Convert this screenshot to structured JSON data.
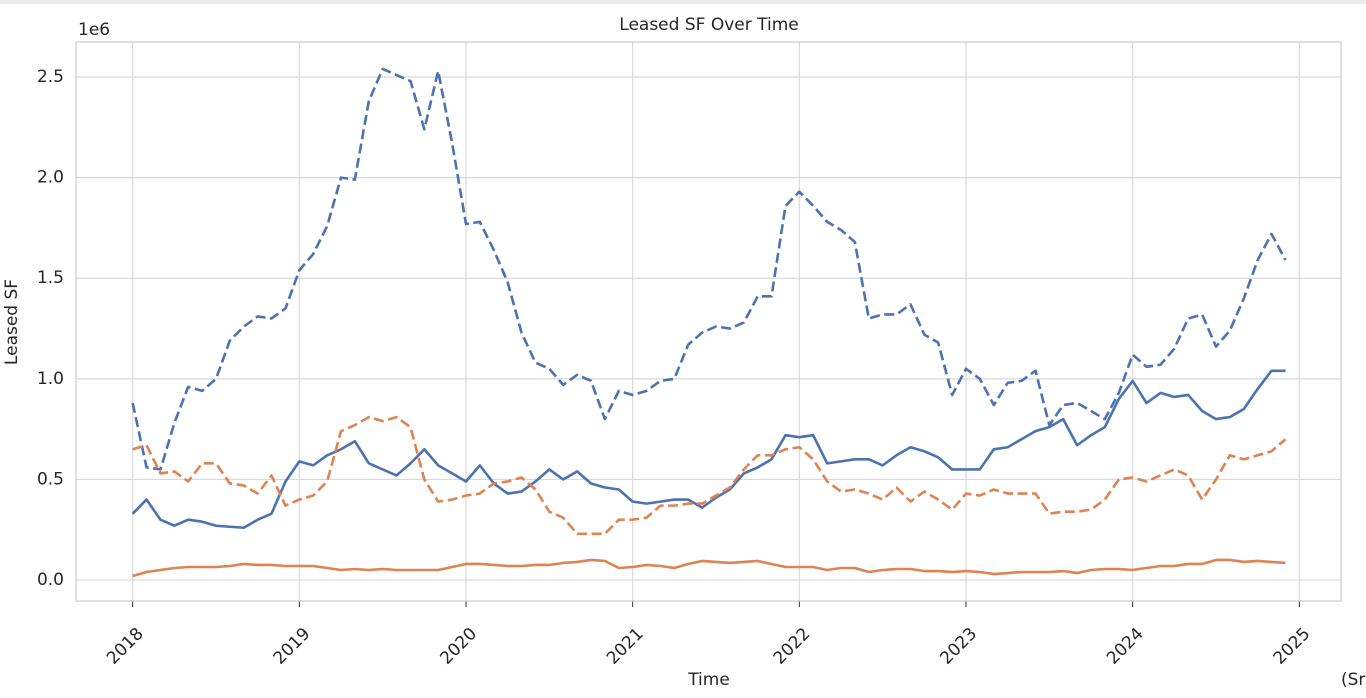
{
  "chart_data": {
    "type": "line",
    "title": "Leased SF Over Time",
    "x_label": "Time",
    "y_label": "Leased SF",
    "y_offset_label": "1e6",
    "annotation": "(Sr",
    "grid": true,
    "xlim": [
      2017.66,
      2025.25
    ],
    "xticks": [
      2018,
      2019,
      2020,
      2021,
      2022,
      2023,
      2024,
      2025
    ],
    "ylim": [
      -0.104,
      2.674
    ],
    "yticks": [
      {
        "value": 0,
        "label": "0.0"
      },
      {
        "value": 0.5,
        "label": "0.5"
      },
      {
        "value": 1,
        "label": "1.0"
      },
      {
        "value": 1.5,
        "label": "1.5"
      },
      {
        "value": 2,
        "label": "2.0"
      },
      {
        "value": 2.5,
        "label": "2.5"
      }
    ],
    "x": [
      2018,
      2018.083,
      2018.167,
      2018.25,
      2018.333,
      2018.417,
      2018.5,
      2018.583,
      2018.667,
      2018.75,
      2018.833,
      2018.917,
      2019,
      2019.083,
      2019.167,
      2019.25,
      2019.333,
      2019.417,
      2019.5,
      2019.583,
      2019.667,
      2019.75,
      2019.833,
      2019.917,
      2020,
      2020.083,
      2020.167,
      2020.25,
      2020.333,
      2020.417,
      2020.5,
      2020.583,
      2020.667,
      2020.75,
      2020.833,
      2020.917,
      2021,
      2021.083,
      2021.167,
      2021.25,
      2021.333,
      2021.417,
      2021.5,
      2021.583,
      2021.667,
      2021.75,
      2021.833,
      2021.917,
      2022,
      2022.083,
      2022.167,
      2022.25,
      2022.333,
      2022.417,
      2022.5,
      2022.583,
      2022.667,
      2022.75,
      2022.833,
      2022.917,
      2023,
      2023.083,
      2023.167,
      2023.25,
      2023.333,
      2023.417,
      2023.5,
      2023.583,
      2023.667,
      2023.75,
      2023.833,
      2023.917,
      2024,
      2024.083,
      2024.167,
      2024.25,
      2024.333,
      2024.417,
      2024.5,
      2024.583,
      2024.667,
      2024.75,
      2024.833,
      2024.917
    ],
    "series": [
      {
        "color": "#4c72b0",
        "linestyle": "dashed",
        "values": [
          0.88,
          0.56,
          0.55,
          0.78,
          0.96,
          0.94,
          1.0,
          1.19,
          1.26,
          1.31,
          1.3,
          1.35,
          1.54,
          1.62,
          1.76,
          2.0,
          1.99,
          2.38,
          2.54,
          2.51,
          2.48,
          2.24,
          2.53,
          2.17,
          1.77,
          1.78,
          1.64,
          1.48,
          1.23,
          1.08,
          1.05,
          0.97,
          1.02,
          0.99,
          0.8,
          0.94,
          0.92,
          0.94,
          0.99,
          1.0,
          1.17,
          1.23,
          1.26,
          1.25,
          1.28,
          1.41,
          1.41,
          1.86,
          1.93,
          1.86,
          1.78,
          1.74,
          1.68,
          1.3,
          1.32,
          1.32,
          1.37,
          1.22,
          1.18,
          0.92,
          1.05,
          1.0,
          0.87,
          0.98,
          0.99,
          1.04,
          0.77,
          0.87,
          0.88,
          0.84,
          0.8,
          0.93,
          1.12,
          1.06,
          1.07,
          1.15,
          1.3,
          1.32,
          1.16,
          1.24,
          1.4,
          1.59,
          1.72,
          1.59
        ]
      },
      {
        "color": "#4c72b0",
        "linestyle": "solid",
        "values": [
          0.33,
          0.4,
          0.3,
          0.27,
          0.3,
          0.29,
          0.27,
          0.265,
          0.26,
          0.3,
          0.33,
          0.49,
          0.59,
          0.57,
          0.62,
          0.65,
          0.69,
          0.58,
          0.55,
          0.52,
          0.58,
          0.65,
          0.57,
          0.53,
          0.49,
          0.57,
          0.48,
          0.43,
          0.44,
          0.49,
          0.55,
          0.5,
          0.54,
          0.48,
          0.46,
          0.45,
          0.39,
          0.38,
          0.39,
          0.4,
          0.4,
          0.36,
          0.41,
          0.45,
          0.53,
          0.56,
          0.6,
          0.72,
          0.71,
          0.72,
          0.58,
          0.59,
          0.6,
          0.6,
          0.57,
          0.62,
          0.66,
          0.64,
          0.61,
          0.55,
          0.55,
          0.55,
          0.65,
          0.66,
          0.7,
          0.74,
          0.76,
          0.8,
          0.67,
          0.72,
          0.76,
          0.9,
          0.99,
          0.88,
          0.93,
          0.91,
          0.92,
          0.84,
          0.8,
          0.81,
          0.85,
          0.95,
          1.04,
          1.04
        ]
      },
      {
        "color": "#dd8452",
        "linestyle": "dashed",
        "values": [
          0.65,
          0.67,
          0.53,
          0.54,
          0.49,
          0.58,
          0.58,
          0.48,
          0.47,
          0.43,
          0.52,
          0.37,
          0.4,
          0.42,
          0.49,
          0.74,
          0.77,
          0.81,
          0.79,
          0.81,
          0.76,
          0.5,
          0.39,
          0.4,
          0.42,
          0.43,
          0.48,
          0.49,
          0.51,
          0.45,
          0.34,
          0.31,
          0.23,
          0.23,
          0.23,
          0.3,
          0.3,
          0.31,
          0.37,
          0.37,
          0.38,
          0.38,
          0.42,
          0.46,
          0.55,
          0.62,
          0.62,
          0.65,
          0.66,
          0.6,
          0.49,
          0.44,
          0.45,
          0.43,
          0.4,
          0.46,
          0.39,
          0.44,
          0.4,
          0.35,
          0.43,
          0.42,
          0.45,
          0.43,
          0.43,
          0.43,
          0.33,
          0.34,
          0.34,
          0.35,
          0.4,
          0.5,
          0.51,
          0.49,
          0.52,
          0.55,
          0.52,
          0.4,
          0.5,
          0.62,
          0.6,
          0.62,
          0.64,
          0.7
        ]
      },
      {
        "color": "#dd8452",
        "linestyle": "solid",
        "values": [
          0.02,
          0.04,
          0.05,
          0.06,
          0.065,
          0.065,
          0.065,
          0.07,
          0.08,
          0.075,
          0.075,
          0.07,
          0.07,
          0.07,
          0.06,
          0.05,
          0.055,
          0.05,
          0.055,
          0.05,
          0.05,
          0.05,
          0.05,
          0.065,
          0.08,
          0.08,
          0.075,
          0.07,
          0.07,
          0.075,
          0.075,
          0.085,
          0.09,
          0.1,
          0.095,
          0.06,
          0.065,
          0.075,
          0.07,
          0.06,
          0.08,
          0.095,
          0.09,
          0.085,
          0.09,
          0.095,
          0.08,
          0.065,
          0.065,
          0.065,
          0.05,
          0.06,
          0.06,
          0.04,
          0.05,
          0.055,
          0.055,
          0.045,
          0.045,
          0.04,
          0.045,
          0.04,
          0.03,
          0.035,
          0.04,
          0.04,
          0.04,
          0.045,
          0.035,
          0.05,
          0.055,
          0.055,
          0.05,
          0.06,
          0.07,
          0.07,
          0.08,
          0.08,
          0.1,
          0.1,
          0.09,
          0.095,
          0.09,
          0.085
        ]
      }
    ]
  }
}
